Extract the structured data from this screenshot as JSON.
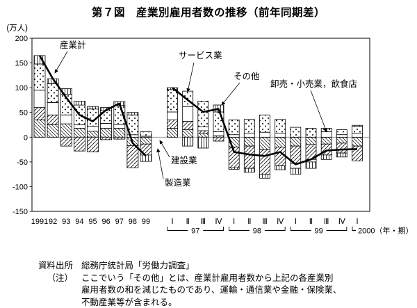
{
  "title": "第７図　産業別雇用者数の推移（前年同期差）",
  "footer": {
    "source_label": "資料出所",
    "source_text": "総務庁統計局「労働力調査」",
    "note_label": "（注）",
    "note_lines": [
      "ここでいう「その他」とは、産業計雇用者数から上記の各産業別",
      "雇用者数の和を減じたものであり、運輸・通信業や金融・保険業、",
      "不動産業等が含まれる。"
    ]
  },
  "chart_data": {
    "type": "bar",
    "subtype": "stacked-bars-with-total-line",
    "title": "第７図　産業別雇用者数の推移（前年同期差）",
    "ylabel": "(万人)",
    "ylim": [
      -150,
      200
    ],
    "yticks": [
      200,
      150,
      100,
      50,
      0,
      -50,
      -100,
      -150
    ],
    "grid": false,
    "legend_position": "in-plot-annotations-with-arrows",
    "annual": {
      "categories": [
        "1991",
        "92",
        "93",
        "94",
        "95",
        "96",
        "97",
        "98",
        "99"
      ],
      "series": [
        {
          "name": "建設業",
          "pattern": "hatch-backslash",
          "values": [
            35,
            25,
            27,
            18,
            12,
            18,
            18,
            -17,
            -14
          ]
        },
        {
          "name": "製造業",
          "pattern": "hatch-slash",
          "values": [
            25,
            20,
            -18,
            -28,
            -30,
            -5,
            -4,
            -45,
            -22
          ]
        },
        {
          "name": "卸売・小売業，飲食店",
          "pattern": "plain",
          "values": [
            35,
            25,
            18,
            7,
            10,
            10,
            8,
            5,
            2
          ]
        },
        {
          "name": "サービス業",
          "pattern": "dots",
          "values": [
            53,
            38,
            42,
            40,
            35,
            25,
            38,
            40,
            9
          ]
        },
        {
          "name": "その他",
          "pattern": "vlines",
          "values": [
            17,
            10,
            11,
            8,
            5,
            7,
            8,
            5,
            -13
          ]
        }
      ],
      "line": {
        "name": "産業計",
        "values": [
          165,
          118,
          80,
          45,
          32,
          55,
          68,
          -12,
          -38
        ]
      }
    },
    "quarterly": {
      "categories": [
        "Ⅰ",
        "Ⅱ",
        "Ⅲ",
        "Ⅳ",
        "Ⅰ",
        "Ⅱ",
        "Ⅲ",
        "Ⅳ",
        "Ⅰ",
        "Ⅱ",
        "Ⅲ",
        "Ⅳ",
        "Ⅰ"
      ],
      "groups": [
        {
          "label": "97",
          "span": [
            0,
            3
          ]
        },
        {
          "label": "98",
          "span": [
            4,
            7
          ]
        },
        {
          "label": "99",
          "span": [
            8,
            11
          ]
        },
        {
          "label": "2000（年・期）",
          "span": [
            12,
            12
          ]
        }
      ],
      "series": [
        {
          "name": "建設業",
          "pattern": "hatch-backslash",
          "values": [
            18,
            15,
            8,
            3,
            -20,
            -18,
            -25,
            -20,
            -18,
            -15,
            -14,
            -12,
            -18
          ]
        },
        {
          "name": "製造業",
          "pattern": "hatch-slash",
          "values": [
            17,
            17,
            5,
            -8,
            -42,
            -45,
            -50,
            -38,
            -35,
            -30,
            -22,
            -20,
            -30
          ]
        },
        {
          "name": "卸売・小売業，飲食店",
          "pattern": "plain",
          "values": [
            16,
            30,
            8,
            8,
            5,
            8,
            10,
            8,
            -10,
            -5,
            11,
            5,
            8
          ]
        },
        {
          "name": "サービス業",
          "pattern": "dots",
          "values": [
            45,
            31,
            52,
            40,
            30,
            28,
            35,
            28,
            20,
            18,
            7,
            10,
            14
          ]
        },
        {
          "name": "その他",
          "pattern": "vlines",
          "values": [
            4,
            -18,
            -22,
            14,
            -3,
            -8,
            -8,
            -8,
            -12,
            -13,
            -9,
            -8,
            2
          ]
        }
      ],
      "line": {
        "name": "産業計",
        "values": [
          100,
          75,
          51,
          57,
          -30,
          -35,
          -38,
          -30,
          -55,
          -45,
          -27,
          -25,
          -24
        ]
      }
    }
  }
}
